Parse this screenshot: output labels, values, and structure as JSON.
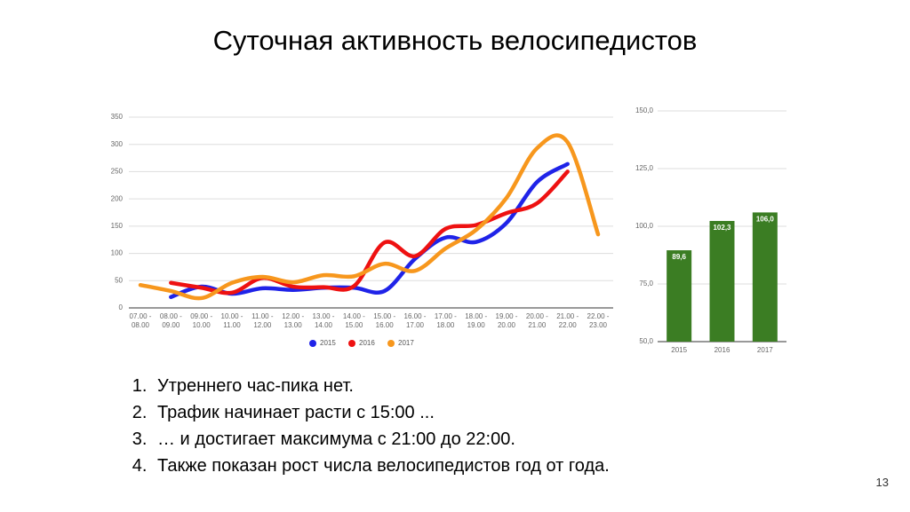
{
  "title": "Суточная активность велосипедистов",
  "chart_data": [
    {
      "type": "line",
      "categories": [
        "07.00 - 08.00",
        "08.00 - 09.00",
        "09.00 - 10.00",
        "10.00 - 11.00",
        "11.00 - 12.00",
        "12.00 - 13.00",
        "13.00 - 14.00",
        "14.00 - 15.00",
        "15.00 - 16.00",
        "16.00 - 17.00",
        "17.00 - 18.00",
        "18.00 - 19.00",
        "19.00 - 20.00",
        "20.00 - 21.00",
        "21.00 - 22.00",
        "22.00 - 23.00"
      ],
      "series": [
        {
          "name": "2015",
          "color": "#1f23e8",
          "values": [
            null,
            20,
            39,
            26,
            36,
            33,
            37,
            37,
            31,
            90,
            129,
            121,
            156,
            231,
            264,
            null
          ]
        },
        {
          "name": "2016",
          "color": "#ee1111",
          "values": [
            null,
            46,
            37,
            28,
            55,
            39,
            38,
            40,
            120,
            95,
            145,
            152,
            174,
            192,
            250,
            null
          ]
        },
        {
          "name": "2017",
          "color": "#f7971d",
          "values": [
            42,
            31,
            18,
            46,
            57,
            47,
            60,
            58,
            81,
            68,
            109,
            143,
            202,
            293,
            304,
            135
          ]
        }
      ],
      "ylim": [
        0,
        350
      ],
      "yticks": [
        0,
        50,
        100,
        150,
        200,
        250,
        300,
        350
      ],
      "grid": true,
      "legend": "bottom"
    },
    {
      "type": "bar",
      "categories": [
        "2015",
        "2016",
        "2017"
      ],
      "values": [
        89.6,
        102.3,
        106.0
      ],
      "value_labels": [
        "89,6",
        "102,3",
        "106,0"
      ],
      "color": "#3b7d23",
      "ylim": [
        50,
        150
      ],
      "yticks": [
        {
          "value": 50,
          "label": "50,0"
        },
        {
          "value": 75,
          "label": "75,0"
        },
        {
          "value": 100,
          "label": "100,0"
        },
        {
          "value": 125,
          "label": "125,0"
        },
        {
          "value": 150,
          "label": "150,0"
        }
      ],
      "grid": true
    }
  ],
  "notes": [
    "Утреннего час-пика нет.",
    "Трафик начинает расти с 15:00 ...",
    "… и достигает максимума с 21:00 до 22:00.",
    "Также показан рост числа велосипедистов год от года."
  ],
  "page_number": "13"
}
